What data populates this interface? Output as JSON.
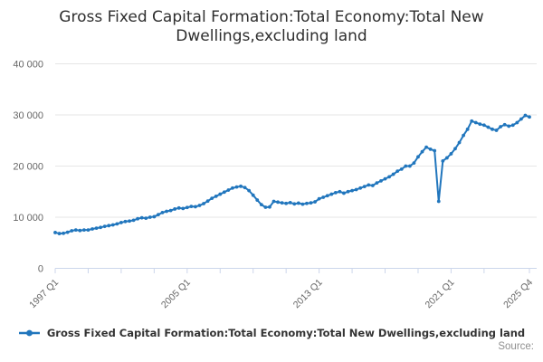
{
  "title": "Gross Fixed Capital Formation:Total Economy:Total New Dwellings,excluding land",
  "source_label": "Source:",
  "legend": {
    "label": "Gross Fixed Capital Formation:Total Economy:Total New Dwellings,excluding land",
    "marker": "line-with-dot"
  },
  "colors": {
    "series": "#2176bd",
    "grid": "#e6e6e6",
    "axis": "#ccd6eb",
    "tick_label": "#666666",
    "title_text": "#2e2e2e",
    "source_text": "#8f8f8f"
  },
  "chart_data": {
    "type": "line",
    "series_name": "Gross Fixed Capital Formation:Total Economy:Total New Dwellings,excluding land",
    "frequency": "quarterly",
    "x_start": "1997 Q1",
    "x_end": "2025 Q4",
    "ylim": [
      0,
      40000
    ],
    "y_ticks": [
      0,
      10000,
      20000,
      30000,
      40000
    ],
    "y_tick_labels": [
      "0",
      "10 000",
      "20 000",
      "30 000",
      "40 000"
    ],
    "grid": "horizontal-only",
    "legend_position": "bottom",
    "x_labeled_ticks": [
      {
        "q": 0,
        "label": "1997 Q1"
      },
      {
        "q": 32,
        "label": "2005 Q1"
      },
      {
        "q": 64,
        "label": "2013 Q1"
      },
      {
        "q": 96,
        "label": "2021 Q1"
      },
      {
        "q": 115,
        "label": "2025 Q4"
      }
    ],
    "x_minor_tick_quarters": [
      0,
      8,
      16,
      24,
      32,
      40,
      48,
      56,
      64,
      72,
      80,
      88,
      96,
      104,
      115
    ],
    "values": [
      7000,
      6800,
      6850,
      7050,
      7350,
      7500,
      7400,
      7500,
      7500,
      7700,
      7850,
      8000,
      8200,
      8350,
      8500,
      8700,
      8950,
      9150,
      9250,
      9400,
      9700,
      9880,
      9800,
      10000,
      10100,
      10500,
      10900,
      11150,
      11300,
      11600,
      11800,
      11700,
      11900,
      12100,
      12050,
      12300,
      12650,
      13150,
      13700,
      14100,
      14500,
      14900,
      15300,
      15700,
      15900,
      16050,
      15800,
      15200,
      14300,
      13350,
      12450,
      11950,
      12000,
      13100,
      12950,
      12800,
      12700,
      12850,
      12600,
      12750,
      12550,
      12700,
      12800,
      13000,
      13600,
      13900,
      14200,
      14500,
      14800,
      15000,
      14700,
      15000,
      15200,
      15400,
      15700,
      16000,
      16300,
      16200,
      16700,
      17100,
      17500,
      17900,
      18400,
      19000,
      19400,
      20000,
      20000,
      20600,
      21800,
      22800,
      23700,
      23300,
      23000,
      13100,
      21000,
      21600,
      22400,
      23400,
      24600,
      26000,
      27200,
      28800,
      28500,
      28200,
      28000,
      27600,
      27200,
      27000,
      27700,
      28100,
      27800,
      28000,
      28500,
      29200,
      29900,
      29600
    ]
  }
}
